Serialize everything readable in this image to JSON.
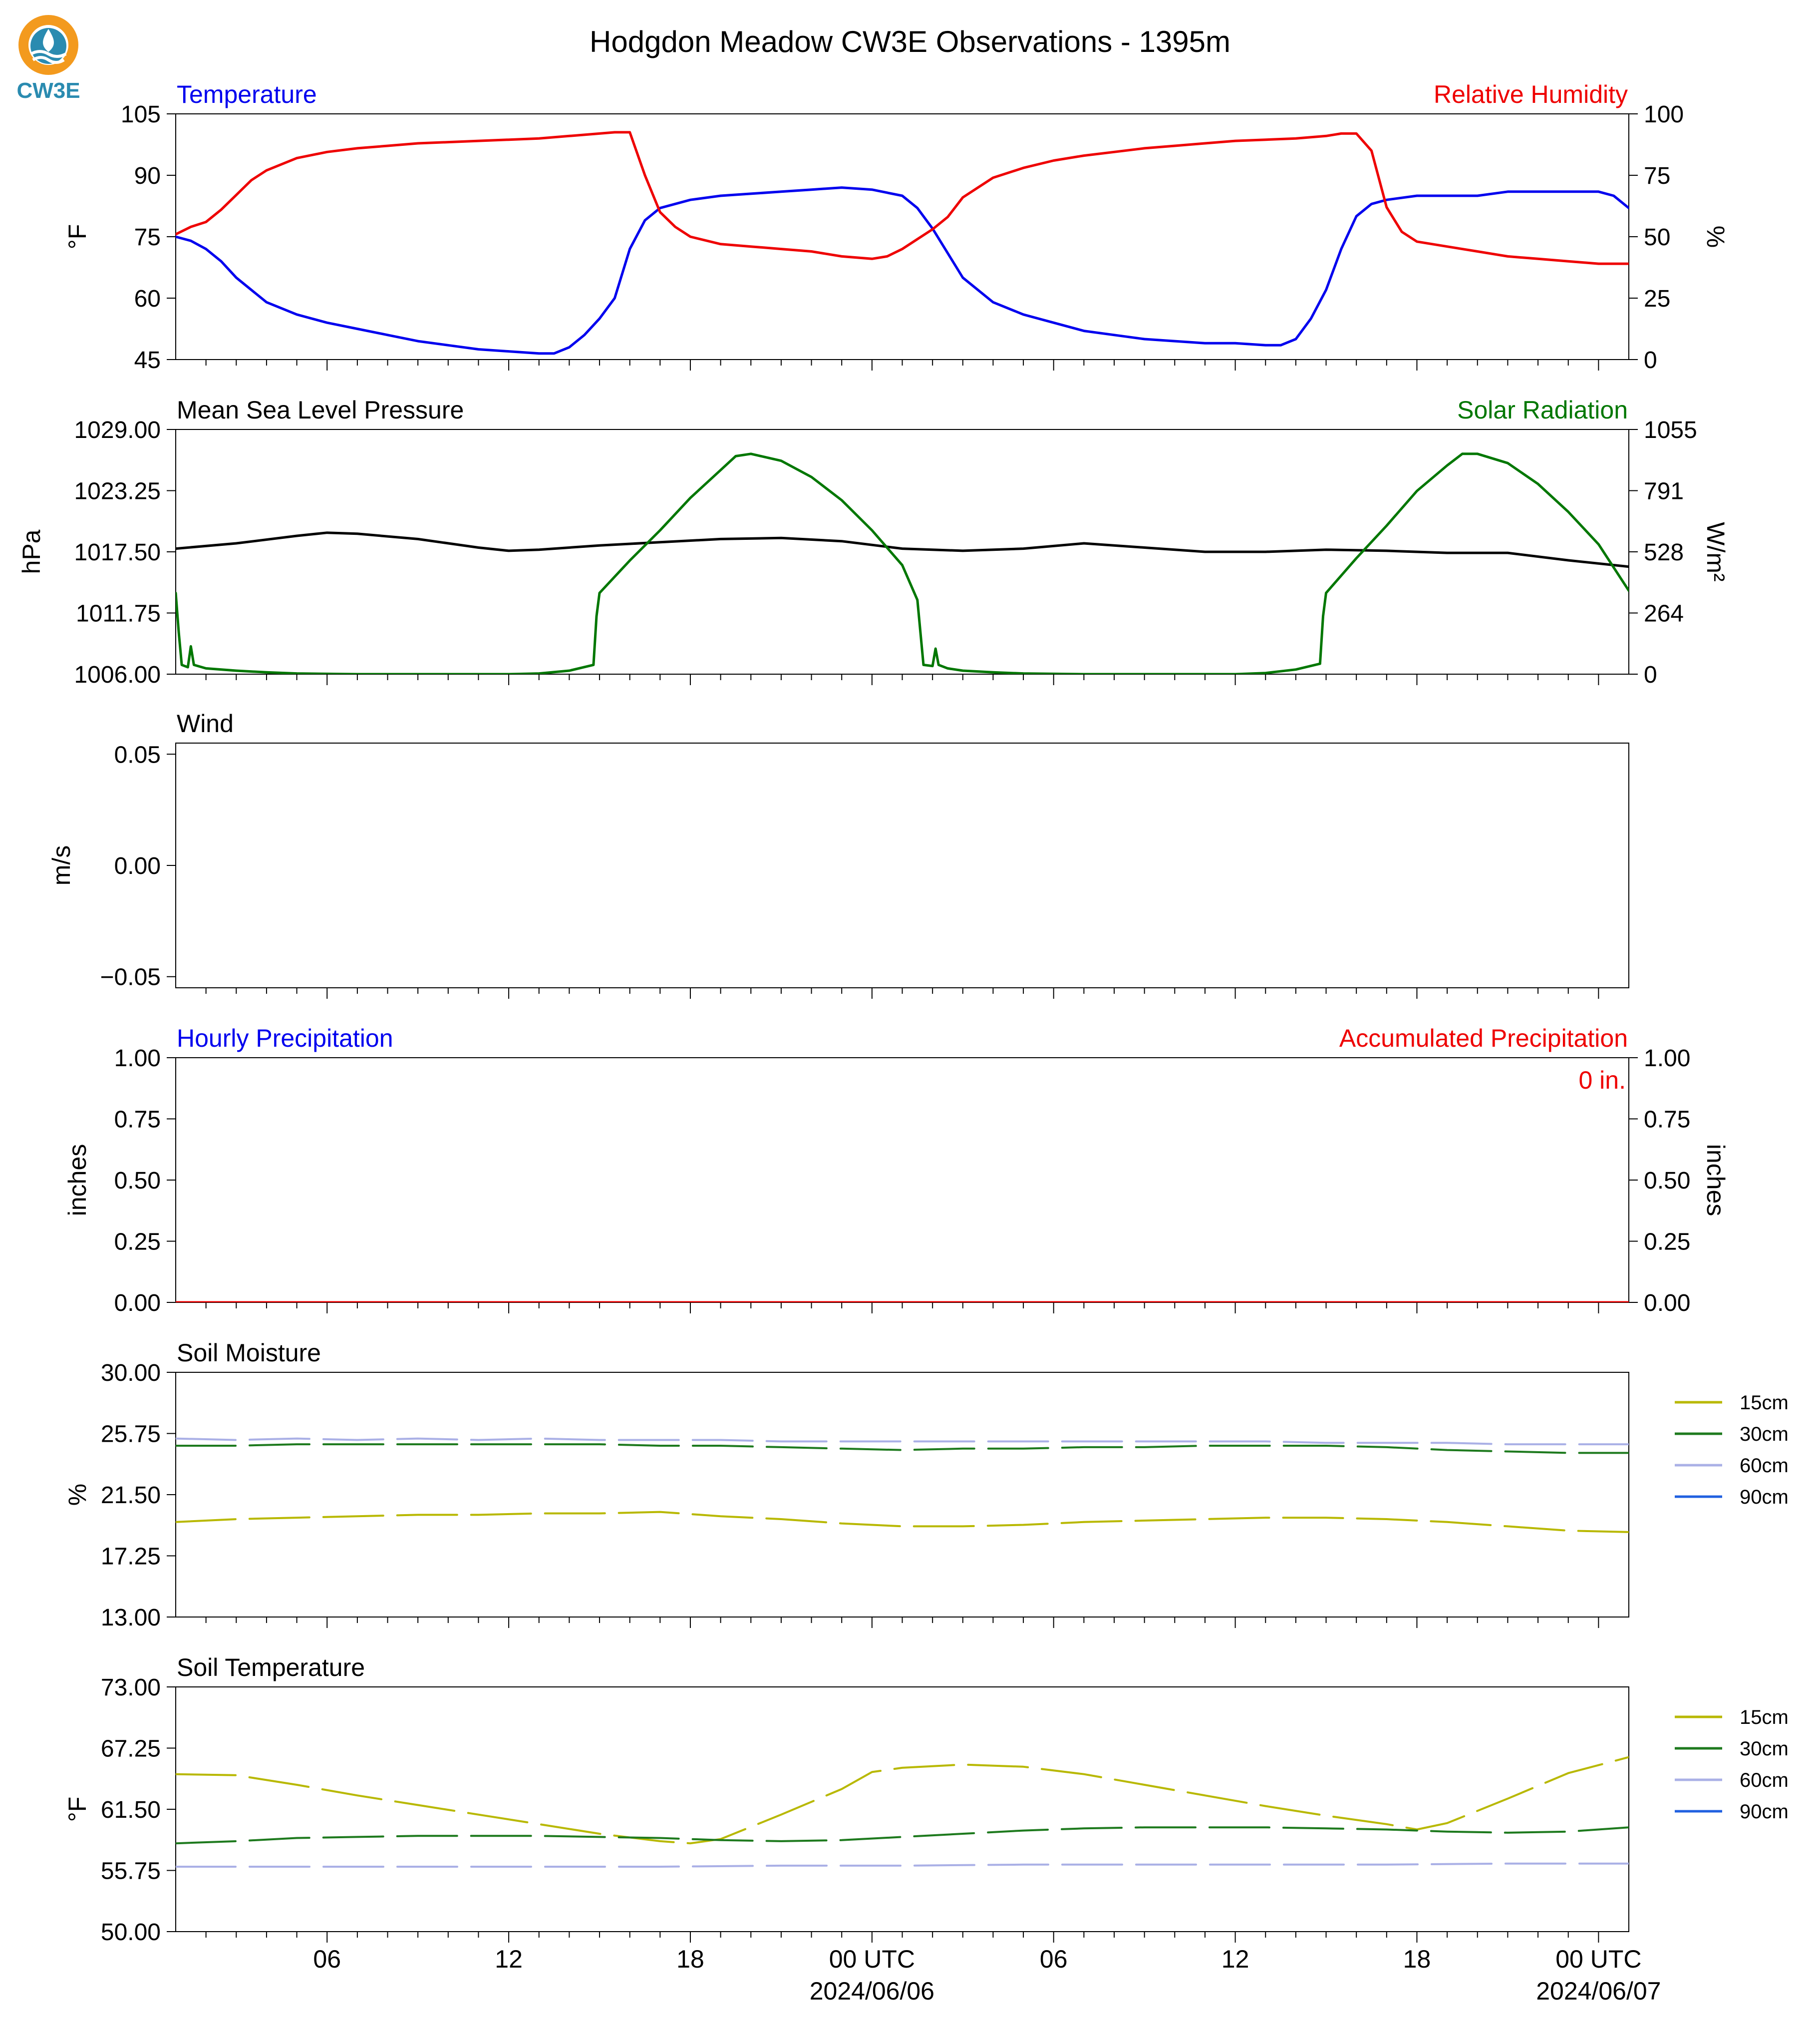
{
  "title": "Hodgdon Meadow CW3E Observations - 1395m",
  "logo": {
    "text": "CW3E",
    "colors": {
      "ring": "#f39a1e",
      "drop": "#2a8bb0",
      "waves": "#2a8bb0",
      "text": "#2a8bb0"
    }
  },
  "x_axis": {
    "start_hour": 0,
    "end_hour": 48,
    "ticks": [
      {
        "hour": 5,
        "label": "06"
      },
      {
        "hour": 11,
        "label": "12"
      },
      {
        "hour": 17,
        "label": "18"
      },
      {
        "hour": 23,
        "label": "00 UTC",
        "sublabel": "2024/06/06"
      },
      {
        "hour": 29,
        "label": "06"
      },
      {
        "hour": 35,
        "label": "12"
      },
      {
        "hour": 41,
        "label": "18"
      },
      {
        "hour": 47,
        "label": "00 UTC",
        "sublabel": "2024/06/07"
      }
    ],
    "minor_tick_step_hours": 1
  },
  "chart_data": [
    {
      "type": "line",
      "id": "temp_rh",
      "title_left": "Temperature",
      "title_right": "Relative Humidity",
      "ylabel": "°F",
      "ylabel_right": "%",
      "ylim": [
        45,
        105
      ],
      "yticks": [
        "45",
        "60",
        "75",
        "90",
        "105"
      ],
      "ylim_right": [
        0,
        100
      ],
      "yticks_right": [
        "0",
        "25",
        "50",
        "75",
        "100"
      ],
      "grid": false,
      "series": [
        {
          "name": "Temperature",
          "axis": "left",
          "color": "#0000ee",
          "x": [
            0,
            0.5,
            1,
            1.5,
            2,
            3,
            4,
            5,
            6,
            7,
            8,
            9,
            10,
            11,
            12,
            12.5,
            13,
            13.5,
            14,
            14.5,
            15,
            15.5,
            16,
            17,
            18,
            19,
            20,
            21,
            22,
            23,
            24,
            24.5,
            25,
            25.5,
            26,
            27,
            28,
            29,
            30,
            31,
            32,
            33,
            34,
            35,
            36,
            36.5,
            37,
            37.5,
            38,
            38.5,
            39,
            39.5,
            40,
            41,
            42,
            43,
            44,
            45,
            46,
            47,
            47.5,
            48
          ],
          "y": [
            75,
            74,
            72,
            69,
            65,
            59,
            56,
            54,
            52.5,
            51,
            49.5,
            48.5,
            47.5,
            47,
            46.5,
            46.5,
            48,
            51,
            55,
            60,
            72,
            79,
            82,
            84,
            85,
            85.5,
            86,
            86.5,
            87,
            86.5,
            85,
            82,
            77,
            71,
            65,
            59,
            56,
            54,
            52,
            51,
            50,
            49.5,
            49,
            49,
            48.5,
            48.5,
            50,
            55,
            62,
            72,
            80,
            83,
            84,
            85,
            85,
            85,
            86,
            86,
            86,
            86,
            85,
            82
          ]
        },
        {
          "name": "Relative Humidity",
          "axis": "right",
          "color": "#ee0000",
          "x": [
            0,
            0.5,
            1,
            1.5,
            2,
            2.5,
            3,
            4,
            5,
            6,
            7,
            8,
            9,
            10,
            11,
            12,
            13,
            14,
            14.5,
            15,
            15.5,
            16,
            16.5,
            17,
            18,
            19,
            20,
            21,
            22,
            23,
            23.5,
            24,
            24.5,
            25,
            25.5,
            26,
            27,
            28,
            29,
            30,
            31,
            32,
            33,
            34,
            35,
            36,
            37,
            38,
            38.5,
            39,
            39.5,
            40,
            40.5,
            41,
            42,
            43,
            44,
            45,
            46,
            47,
            48
          ],
          "y": [
            51,
            54,
            56,
            61,
            67,
            73,
            77,
            82,
            84.5,
            86,
            87,
            88,
            88.5,
            89,
            89.5,
            90,
            91,
            92,
            92.5,
            92.5,
            75,
            60,
            54,
            50,
            47,
            46,
            45,
            44,
            42,
            41,
            42,
            45,
            49,
            53,
            58,
            66,
            74,
            78,
            81,
            83,
            84.5,
            86,
            87,
            88,
            89,
            89.5,
            90,
            91,
            92,
            92,
            85,
            62,
            52,
            48,
            46,
            44,
            42,
            41,
            40,
            39,
            39
          ]
        }
      ]
    },
    {
      "type": "line",
      "id": "pressure_solar",
      "title_left": "Mean Sea Level Pressure",
      "title_right": "Solar Radiation",
      "ylabel": "hPa",
      "ylabel_right": "W/m²",
      "ylim": [
        1006.0,
        1029.0
      ],
      "yticks": [
        "1006.00",
        "1011.75",
        "1017.50",
        "1023.25",
        "1029.00"
      ],
      "ylim_right": [
        0,
        1055
      ],
      "yticks_right": [
        "0",
        "264",
        "528",
        "791",
        "1055"
      ],
      "grid": false,
      "series": [
        {
          "name": "Mean Sea Level Pressure",
          "axis": "left",
          "color": "#000000",
          "x": [
            0,
            2,
            4,
            5,
            6,
            8,
            10,
            11,
            12,
            14,
            16,
            18,
            20,
            22,
            24,
            26,
            28,
            30,
            32,
            34,
            36,
            38,
            40,
            42,
            44,
            46,
            48
          ],
          "y": [
            1017.8,
            1018.3,
            1019.0,
            1019.3,
            1019.2,
            1018.7,
            1017.9,
            1017.6,
            1017.7,
            1018.1,
            1018.4,
            1018.7,
            1018.8,
            1018.5,
            1017.8,
            1017.6,
            1017.8,
            1018.3,
            1017.9,
            1017.5,
            1017.5,
            1017.7,
            1017.6,
            1017.4,
            1017.4,
            1016.7,
            1016.1
          ]
        },
        {
          "name": "Solar Radiation",
          "axis": "right",
          "color": "#007700",
          "x": [
            0,
            0.1,
            0.2,
            0.4,
            0.5,
            0.6,
            1,
            2,
            3,
            4,
            6,
            8,
            10,
            11,
            12,
            13,
            13.8,
            13.9,
            14.0,
            15,
            16,
            17,
            18,
            18.5,
            19,
            20,
            21,
            22,
            23,
            24,
            24.5,
            24.6,
            24.7,
            25,
            25.1,
            25.2,
            25.5,
            26,
            27,
            28,
            30,
            32,
            34,
            35,
            36,
            37,
            37.8,
            37.9,
            38.0,
            39,
            40,
            41,
            42,
            42.5,
            43,
            44,
            45,
            46,
            47,
            48
          ],
          "y": [
            350,
            180,
            40,
            30,
            120,
            40,
            25,
            15,
            8,
            3,
            0,
            0,
            0,
            0,
            3,
            15,
            40,
            250,
            350,
            490,
            620,
            760,
            880,
            940,
            950,
            920,
            850,
            750,
            620,
            470,
            320,
            180,
            40,
            35,
            110,
            40,
            25,
            15,
            8,
            3,
            0,
            0,
            0,
            0,
            5,
            20,
            45,
            250,
            350,
            500,
            640,
            790,
            900,
            950,
            950,
            910,
            820,
            700,
            560,
            360
          ]
        }
      ]
    },
    {
      "type": "line",
      "id": "wind",
      "title_left": "Wind",
      "ylabel": "m/s",
      "ylim": [
        -0.055,
        0.055
      ],
      "yticks": [
        "−0.05",
        "0.00",
        "0.05"
      ],
      "yticks_values": [
        -0.05,
        0.0,
        0.05
      ],
      "grid": false,
      "series": []
    },
    {
      "type": "line",
      "id": "precip",
      "title_left": "Hourly Precipitation",
      "title_right": "Accumulated Precipitation",
      "ylabel": "inches",
      "ylabel_right": "inches",
      "ylim": [
        0,
        1
      ],
      "yticks": [
        "0.00",
        "0.25",
        "0.50",
        "0.75",
        "1.00"
      ],
      "ylim_right": [
        0,
        1
      ],
      "yticks_right": [
        "0.00",
        "0.25",
        "0.50",
        "0.75",
        "1.00"
      ],
      "annotation": "0 in.",
      "grid": false,
      "series": [
        {
          "name": "Accumulated Precipitation",
          "axis": "right",
          "color": "#ee0000",
          "x": [
            0,
            48
          ],
          "y": [
            0,
            0
          ]
        }
      ]
    },
    {
      "type": "line",
      "id": "soil_moisture",
      "title_left": "Soil Moisture",
      "ylabel": "%",
      "ylim": [
        13.0,
        30.0
      ],
      "yticks": [
        "13.00",
        "17.25",
        "21.50",
        "25.75",
        "30.00"
      ],
      "legend": "right",
      "grid": false,
      "series": [
        {
          "name": "15cm",
          "color": "#b8b800",
          "x": [
            0,
            2,
            4,
            6,
            8,
            10,
            12,
            14,
            16,
            18,
            20,
            22,
            24,
            26,
            28,
            30,
            32,
            34,
            36,
            38,
            40,
            42,
            44,
            46,
            48
          ],
          "y": [
            19.6,
            19.8,
            19.9,
            20.0,
            20.1,
            20.1,
            20.2,
            20.2,
            20.3,
            20.0,
            19.8,
            19.5,
            19.3,
            19.3,
            19.4,
            19.6,
            19.7,
            19.8,
            19.9,
            19.9,
            19.8,
            19.6,
            19.3,
            19.0,
            18.9
          ]
        },
        {
          "name": "30cm",
          "color": "#1e7a1e",
          "x": [
            0,
            2,
            4,
            6,
            8,
            10,
            12,
            14,
            16,
            18,
            20,
            22,
            24,
            26,
            28,
            30,
            32,
            34,
            36,
            38,
            40,
            42,
            44,
            46,
            48
          ],
          "y": [
            24.9,
            24.9,
            25.0,
            25.0,
            25.0,
            25.0,
            25.0,
            25.0,
            24.9,
            24.9,
            24.8,
            24.7,
            24.6,
            24.7,
            24.7,
            24.8,
            24.8,
            24.9,
            24.9,
            24.9,
            24.8,
            24.6,
            24.5,
            24.4,
            24.4
          ]
        },
        {
          "name": "60cm",
          "color": "#aab0e6",
          "x": [
            0,
            2,
            4,
            6,
            8,
            10,
            12,
            14,
            16,
            18,
            20,
            22,
            24,
            26,
            28,
            30,
            32,
            34,
            36,
            38,
            40,
            42,
            44,
            46,
            48
          ],
          "y": [
            25.4,
            25.3,
            25.4,
            25.3,
            25.4,
            25.3,
            25.4,
            25.3,
            25.3,
            25.3,
            25.2,
            25.2,
            25.2,
            25.2,
            25.2,
            25.2,
            25.2,
            25.2,
            25.2,
            25.1,
            25.1,
            25.1,
            25.0,
            25.0,
            25.0
          ]
        },
        {
          "name": "90cm",
          "color": "#2060e0",
          "x": [],
          "y": []
        }
      ]
    },
    {
      "type": "line",
      "id": "soil_temperature",
      "title_left": "Soil Temperature",
      "ylabel": "°F",
      "ylim": [
        50.0,
        73.0
      ],
      "yticks": [
        "50.00",
        "55.75",
        "61.50",
        "67.25",
        "73.00"
      ],
      "legend": "right",
      "grid": false,
      "series": [
        {
          "name": "15cm",
          "color": "#b8b800",
          "x": [
            0,
            2,
            4,
            6,
            8,
            10,
            12,
            14,
            16,
            17,
            18,
            20,
            22,
            23,
            24,
            26,
            28,
            30,
            32,
            34,
            36,
            38,
            40,
            41,
            42,
            44,
            46,
            48
          ],
          "y": [
            64.8,
            64.7,
            63.8,
            62.8,
            61.9,
            61.0,
            60.1,
            59.2,
            58.5,
            58.3,
            58.7,
            61.0,
            63.4,
            65.0,
            65.4,
            65.7,
            65.5,
            64.8,
            63.8,
            62.8,
            61.8,
            60.9,
            60.1,
            59.6,
            60.2,
            62.5,
            64.9,
            66.4
          ]
        },
        {
          "name": "30cm",
          "color": "#1e7a1e",
          "x": [
            0,
            2,
            4,
            6,
            8,
            10,
            12,
            14,
            16,
            18,
            20,
            22,
            24,
            26,
            28,
            30,
            32,
            34,
            36,
            38,
            40,
            42,
            44,
            46,
            48
          ],
          "y": [
            58.3,
            58.5,
            58.8,
            58.9,
            59.0,
            59.0,
            59.0,
            58.9,
            58.8,
            58.6,
            58.5,
            58.6,
            58.9,
            59.2,
            59.5,
            59.7,
            59.8,
            59.8,
            59.8,
            59.7,
            59.6,
            59.4,
            59.3,
            59.4,
            59.8
          ]
        },
        {
          "name": "60cm",
          "color": "#aab0e6",
          "x": [
            0,
            4,
            8,
            12,
            16,
            20,
            24,
            28,
            32,
            36,
            40,
            44,
            48
          ],
          "y": [
            56.1,
            56.1,
            56.1,
            56.1,
            56.1,
            56.2,
            56.2,
            56.3,
            56.3,
            56.3,
            56.3,
            56.4,
            56.4
          ]
        },
        {
          "name": "90cm",
          "color": "#2060e0",
          "x": [],
          "y": []
        }
      ]
    }
  ]
}
